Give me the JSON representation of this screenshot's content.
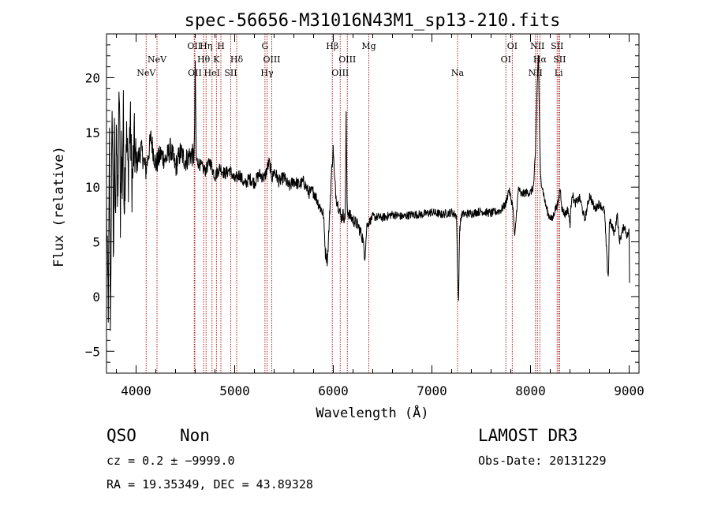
{
  "chart_data": {
    "type": "line",
    "title": "spec-56656-M31016N43M1_sp13-210.fits",
    "xlabel": "Wavelength (Å)",
    "ylabel": "Flux (relative)",
    "xlim": [
      3700,
      9100
    ],
    "ylim": [
      -7,
      24
    ],
    "xticks": [
      4000,
      5000,
      6000,
      7000,
      8000,
      9000
    ],
    "yticks": [
      -5,
      0,
      5,
      10,
      15,
      20
    ],
    "xtick_labels": [
      "4000",
      "5000",
      "6000",
      "7000",
      "8000",
      "9000"
    ],
    "ytick_labels": [
      "−5",
      "0",
      "5",
      "10",
      "15",
      "20"
    ],
    "line_color": "#000000",
    "marker_color": "#b22222",
    "spectrum_anchors": [
      [
        3700,
        8
      ],
      [
        3710,
        2
      ],
      [
        3720,
        -1
      ],
      [
        3730,
        14
      ],
      [
        3740,
        -3
      ],
      [
        3750,
        10
      ],
      [
        3760,
        17
      ],
      [
        3770,
        3
      ],
      [
        3780,
        15
      ],
      [
        3790,
        6
      ],
      [
        3800,
        18
      ],
      [
        3810,
        8
      ],
      [
        3820,
        12
      ],
      [
        3830,
        20
      ],
      [
        3840,
        7
      ],
      [
        3850,
        14
      ],
      [
        3860,
        10
      ],
      [
        3870,
        17
      ],
      [
        3880,
        9
      ],
      [
        3900,
        15
      ],
      [
        3920,
        11
      ],
      [
        3940,
        16
      ],
      [
        3960,
        10
      ],
      [
        3980,
        14
      ],
      [
        4000,
        12
      ],
      [
        4050,
        13.5
      ],
      [
        4100,
        11.5
      ],
      [
        4150,
        14.5
      ],
      [
        4200,
        12
      ],
      [
        4250,
        13
      ],
      [
        4300,
        12.5
      ],
      [
        4350,
        13.5
      ],
      [
        4400,
        11.8
      ],
      [
        4450,
        13.2
      ],
      [
        4500,
        12.4
      ],
      [
        4550,
        13
      ],
      [
        4590,
        12.8
      ],
      [
        4600,
        21
      ],
      [
        4610,
        12.5
      ],
      [
        4650,
        12
      ],
      [
        4700,
        11.5
      ],
      [
        4750,
        12.3
      ],
      [
        4800,
        11
      ],
      [
        4850,
        11.8
      ],
      [
        4900,
        11.2
      ],
      [
        4950,
        11.6
      ],
      [
        5000,
        10.6
      ],
      [
        5050,
        11.2
      ],
      [
        5100,
        10.2
      ],
      [
        5150,
        10.8
      ],
      [
        5200,
        10.4
      ],
      [
        5250,
        11.2
      ],
      [
        5300,
        10.8
      ],
      [
        5350,
        12.3
      ],
      [
        5380,
        10.8
      ],
      [
        5400,
        11.5
      ],
      [
        5450,
        10.5
      ],
      [
        5500,
        10.9
      ],
      [
        5550,
        10
      ],
      [
        5600,
        10.6
      ],
      [
        5650,
        10.2
      ],
      [
        5700,
        10.5
      ],
      [
        5750,
        9.5
      ],
      [
        5800,
        9.6
      ],
      [
        5850,
        8.5
      ],
      [
        5900,
        7.5
      ],
      [
        5920,
        4
      ],
      [
        5940,
        3.3
      ],
      [
        5960,
        7
      ],
      [
        5980,
        11
      ],
      [
        6000,
        13.7
      ],
      [
        6010,
        11
      ],
      [
        6030,
        9
      ],
      [
        6060,
        8
      ],
      [
        6080,
        7.2
      ],
      [
        6100,
        7.5
      ],
      [
        6120,
        7
      ],
      [
        6130,
        16.5
      ],
      [
        6140,
        8
      ],
      [
        6160,
        7.5
      ],
      [
        6200,
        7
      ],
      [
        6250,
        6.5
      ],
      [
        6300,
        5.3
      ],
      [
        6320,
        3.5
      ],
      [
        6340,
        6.5
      ],
      [
        6400,
        7.3
      ],
      [
        6500,
        7.2
      ],
      [
        6600,
        7.5
      ],
      [
        6700,
        7.3
      ],
      [
        6800,
        7.5
      ],
      [
        6900,
        7.5
      ],
      [
        7000,
        7.7
      ],
      [
        7100,
        7.5
      ],
      [
        7200,
        7.7
      ],
      [
        7250,
        7.4
      ],
      [
        7260,
        2
      ],
      [
        7270,
        -0.5
      ],
      [
        7280,
        6
      ],
      [
        7300,
        7.5
      ],
      [
        7400,
        7.6
      ],
      [
        7500,
        7.8
      ],
      [
        7600,
        7.6
      ],
      [
        7700,
        7.9
      ],
      [
        7750,
        8.5
      ],
      [
        7780,
        9.8
      ],
      [
        7800,
        9
      ],
      [
        7820,
        8.3
      ],
      [
        7840,
        5.3
      ],
      [
        7860,
        8
      ],
      [
        7880,
        10
      ],
      [
        7900,
        9.3
      ],
      [
        7950,
        9.5
      ],
      [
        8000,
        9.5
      ],
      [
        8030,
        10
      ],
      [
        8050,
        13
      ],
      [
        8060,
        17
      ],
      [
        8070,
        20
      ],
      [
        8080,
        22
      ],
      [
        8090,
        16
      ],
      [
        8100,
        11
      ],
      [
        8120,
        10
      ],
      [
        8150,
        8.5
      ],
      [
        8180,
        7.5
      ],
      [
        8220,
        7
      ],
      [
        8250,
        8
      ],
      [
        8280,
        8.5
      ],
      [
        8300,
        10
      ],
      [
        8320,
        8
      ],
      [
        8350,
        7.5
      ],
      [
        8380,
        8
      ],
      [
        8400,
        6.5
      ],
      [
        8420,
        9.5
      ],
      [
        8450,
        8.5
      ],
      [
        8500,
        9
      ],
      [
        8550,
        7
      ],
      [
        8600,
        9.3
      ],
      [
        8650,
        8
      ],
      [
        8700,
        8.5
      ],
      [
        8750,
        7.8
      ],
      [
        8780,
        2.5
      ],
      [
        8790,
        1.8
      ],
      [
        8800,
        7
      ],
      [
        8850,
        5.8
      ],
      [
        8880,
        7.5
      ],
      [
        8900,
        5
      ],
      [
        8950,
        6.5
      ],
      [
        8980,
        5.5
      ],
      [
        9000,
        6
      ],
      [
        9005,
        0
      ]
    ],
    "lines": [
      {
        "wl": 4102,
        "name": "H",
        "label": "NeV",
        "row": 3
      },
      {
        "wl": 4212,
        "name": "NeV",
        "label": "NeV",
        "row": 2
      },
      {
        "wl": 4590,
        "name": "OII-a",
        "label": "OII",
        "row": 1
      },
      {
        "wl": 4596,
        "name": "OII-b",
        "label": "OII",
        "row": 3
      },
      {
        "wl": 4685,
        "name": "H-theta",
        "label": "Hθ",
        "row": 2
      },
      {
        "wl": 4710,
        "name": "H-eta",
        "label": "Hη",
        "row": 1
      },
      {
        "wl": 4770,
        "name": "HeI",
        "label": "HeI",
        "row": 3
      },
      {
        "wl": 4815,
        "name": "K",
        "label": "K",
        "row": 2
      },
      {
        "wl": 4860,
        "name": "H-epsilon",
        "label": "H",
        "row": 1
      },
      {
        "wl": 4960,
        "name": "SII-blue",
        "label": "SII",
        "row": 3
      },
      {
        "wl": 5020,
        "name": "H-delta",
        "label": "Hδ",
        "row": 2
      },
      {
        "wl": 5307,
        "name": "G",
        "label": "G",
        "row": 1
      },
      {
        "wl": 5328,
        "name": "H-gamma",
        "label": "Hγ",
        "row": 3
      },
      {
        "wl": 5376,
        "name": "OIII-4363",
        "label": "OIII",
        "row": 2
      },
      {
        "wl": 5990,
        "name": "H-beta",
        "label": "Hβ",
        "row": 1
      },
      {
        "wl": 6070,
        "name": "OIII-a",
        "label": "OIII",
        "row": 3
      },
      {
        "wl": 6142,
        "name": "OIII-b",
        "label": "OIII",
        "row": 2
      },
      {
        "wl": 6360,
        "name": "Mg",
        "label": "Mg",
        "row": 1
      },
      {
        "wl": 7260,
        "name": "Na",
        "label": "Na",
        "row": 3
      },
      {
        "wl": 7750,
        "name": "OI-a",
        "label": "OI",
        "row": 2
      },
      {
        "wl": 7815,
        "name": "OI-b",
        "label": "OI",
        "row": 1
      },
      {
        "wl": 8050,
        "name": "NII-a",
        "label": "NII",
        "row": 3
      },
      {
        "wl": 8070,
        "name": "NII-b",
        "label": "NII",
        "row": 1
      },
      {
        "wl": 8095,
        "name": "H-alpha",
        "label": "Hα",
        "row": 2
      },
      {
        "wl": 8270,
        "name": "SII-a",
        "label": "SII",
        "row": 1
      },
      {
        "wl": 8295,
        "name": "SII-b",
        "label": "SII",
        "row": 2
      },
      {
        "wl": 8285,
        "name": "Li",
        "label": "Li",
        "row": 3
      }
    ]
  },
  "info": {
    "class": "QSO",
    "subclass": "Non",
    "survey": "LAMOST DR3",
    "cz_line": "cz = 0.2 ± −9999.0",
    "obs_date": "Obs-Date: 20131229",
    "coords": "RA =  19.35349, DEC =  43.89328"
  }
}
